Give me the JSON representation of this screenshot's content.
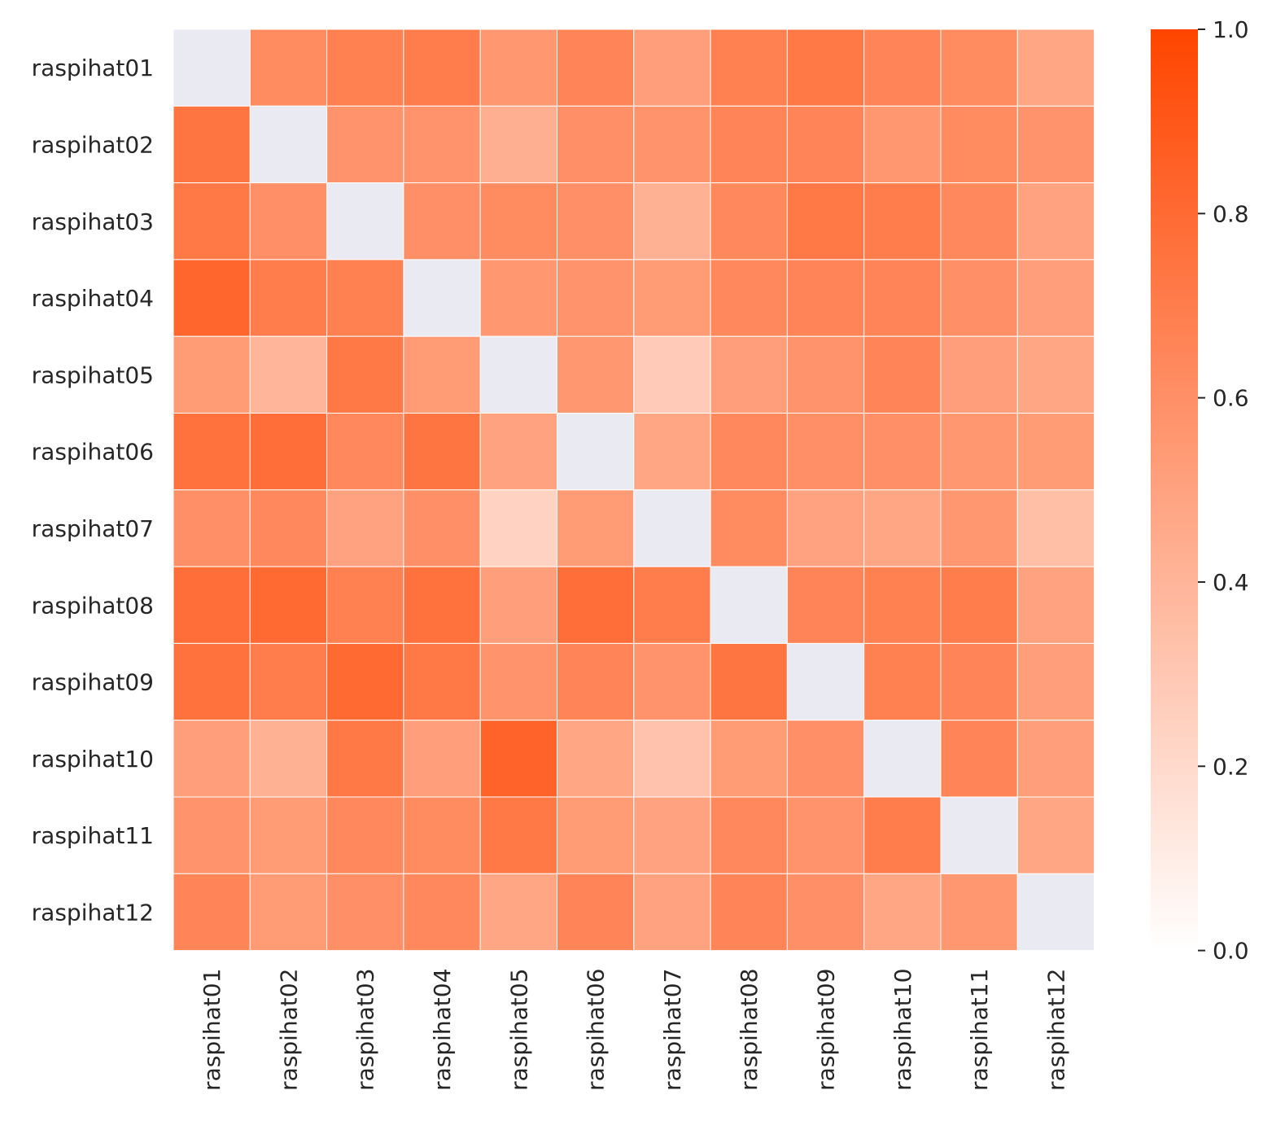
{
  "chart_data": {
    "type": "heatmap",
    "title": "",
    "xlabel": "",
    "ylabel": "",
    "rows": [
      "raspihat01",
      "raspihat02",
      "raspihat03",
      "raspihat04",
      "raspihat05",
      "raspihat06",
      "raspihat07",
      "raspihat08",
      "raspihat09",
      "raspihat10",
      "raspihat11",
      "raspihat12"
    ],
    "columns": [
      "raspihat01",
      "raspihat02",
      "raspihat03",
      "raspihat04",
      "raspihat05",
      "raspihat06",
      "raspihat07",
      "raspihat08",
      "raspihat09",
      "raspihat10",
      "raspihat11",
      "raspihat12"
    ],
    "values": [
      [
        null,
        0.62,
        0.68,
        0.7,
        0.56,
        0.66,
        0.52,
        0.68,
        0.72,
        0.66,
        0.62,
        0.48
      ],
      [
        0.74,
        null,
        0.58,
        0.58,
        0.43,
        0.6,
        0.58,
        0.66,
        0.66,
        0.56,
        0.62,
        0.58
      ],
      [
        0.72,
        0.6,
        null,
        0.6,
        0.62,
        0.6,
        0.42,
        0.64,
        0.72,
        0.7,
        0.64,
        0.5
      ],
      [
        0.82,
        0.7,
        0.68,
        null,
        0.56,
        0.58,
        0.54,
        0.64,
        0.66,
        0.66,
        0.6,
        0.52
      ],
      [
        0.54,
        0.4,
        0.72,
        0.54,
        null,
        0.56,
        0.28,
        0.52,
        0.58,
        0.66,
        0.52,
        0.48
      ],
      [
        0.76,
        0.78,
        0.64,
        0.74,
        0.5,
        null,
        0.48,
        0.64,
        0.6,
        0.6,
        0.56,
        0.54
      ],
      [
        0.6,
        0.64,
        0.5,
        0.6,
        0.24,
        0.54,
        null,
        0.62,
        0.5,
        0.48,
        0.56,
        0.35
      ],
      [
        0.78,
        0.8,
        0.68,
        0.76,
        0.52,
        0.78,
        0.7,
        null,
        0.66,
        0.68,
        0.7,
        0.5
      ],
      [
        0.76,
        0.7,
        0.8,
        0.72,
        0.58,
        0.66,
        0.58,
        0.74,
        null,
        0.68,
        0.66,
        0.52
      ],
      [
        0.52,
        0.42,
        0.72,
        0.52,
        0.84,
        0.48,
        0.32,
        0.54,
        0.6,
        null,
        0.66,
        0.52
      ],
      [
        0.58,
        0.54,
        0.64,
        0.62,
        0.72,
        0.54,
        0.5,
        0.64,
        0.58,
        0.7,
        null,
        0.48
      ],
      [
        0.66,
        0.54,
        0.6,
        0.64,
        0.48,
        0.66,
        0.5,
        0.66,
        0.6,
        0.48,
        0.56,
        null
      ]
    ],
    "vmin": 0.0,
    "vmax": 1.0,
    "missing_color": "#eaeaf2",
    "colorscale": [
      "#ffffff",
      "#ff4500"
    ],
    "grid_color": "#ffffff",
    "colorbar": {
      "ticks": [
        0.0,
        0.2,
        0.4,
        0.6,
        0.8,
        1.0
      ],
      "tick_labels": [
        "0.0",
        "0.2",
        "0.4",
        "0.6",
        "0.8",
        "1.0"
      ],
      "placement": "right"
    }
  }
}
